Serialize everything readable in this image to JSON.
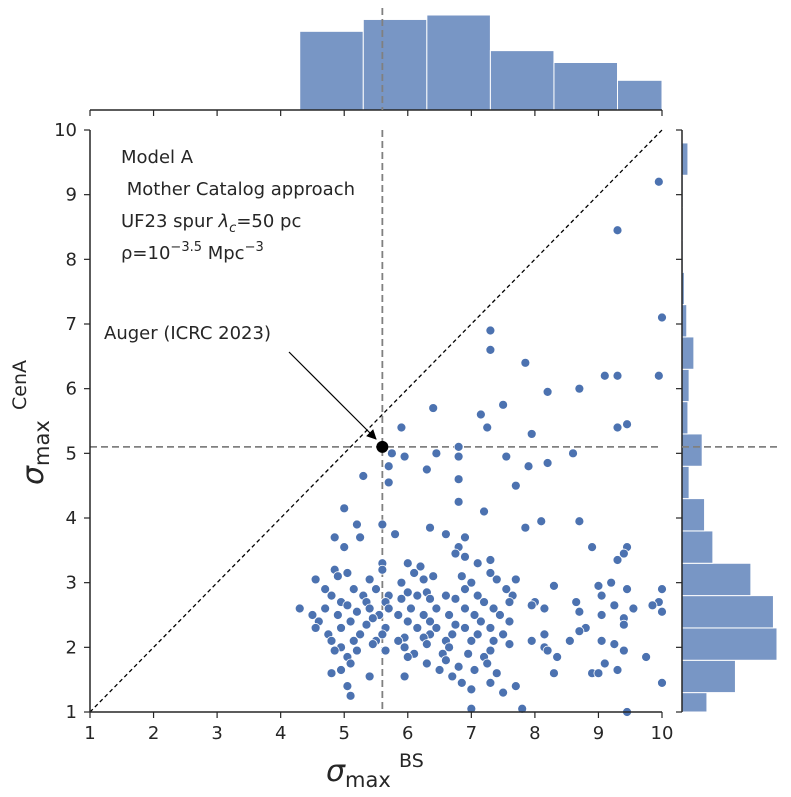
{
  "chart_data": {
    "type": "scatter",
    "variant": "jointplot with marginal histograms",
    "xlabel": {
      "main": "σ",
      "sub": "max",
      "sup": "BS"
    },
    "ylabel": {
      "main": "σ",
      "sub": "max",
      "sup": "CenA"
    },
    "xlim": [
      1,
      10
    ],
    "ylim": [
      1,
      10
    ],
    "xticks": [
      "1",
      "2",
      "3",
      "4",
      "5",
      "6",
      "7",
      "8",
      "9",
      "10"
    ],
    "yticks": [
      "1",
      "2",
      "3",
      "4",
      "5",
      "6",
      "7",
      "8",
      "9",
      "10"
    ],
    "grid": false,
    "diagonal_line": {
      "from": [
        1,
        1
      ],
      "to": [
        10,
        10
      ],
      "style": "dotted",
      "color": "#000000"
    },
    "reference_lines": {
      "x": 5.6,
      "y": 5.1,
      "style": "dashed",
      "color": "#808080"
    },
    "marker_color": "#4c72b0",
    "hist_color": "#7896c5",
    "annotation_lines": [
      {
        "id": "model",
        "text": "Model A"
      },
      {
        "id": "catalog",
        "text": " Mother Catalog approach"
      },
      {
        "id": "spur",
        "pre": "UF23 spur ",
        "sym": "λ",
        "sub": "c",
        "post": "=50 pc"
      },
      {
        "id": "rho",
        "pre": "ρ=10",
        "sup": "−3.5",
        "mid": " Mpc",
        "sup2": "−3"
      }
    ],
    "auger": {
      "label": "Auger (ICRC 2023)",
      "x": 5.6,
      "y": 5.1,
      "label_at": [
        2.25,
        6.8
      ]
    },
    "top_hist": {
      "bins": [
        [
          4.3,
          5.3
        ],
        [
          5.3,
          6.3
        ],
        [
          6.3,
          7.3
        ],
        [
          7.3,
          8.3
        ],
        [
          8.3,
          9.3
        ],
        [
          9.3,
          10.0
        ]
      ],
      "counts": [
        53,
        61,
        64,
        40,
        32,
        20
      ]
    },
    "right_hist": {
      "bins": [
        [
          1.0,
          1.3
        ],
        [
          1.3,
          1.8
        ],
        [
          1.8,
          2.3
        ],
        [
          2.3,
          2.8
        ],
        [
          2.8,
          3.3
        ],
        [
          3.3,
          3.8
        ],
        [
          3.8,
          4.3
        ],
        [
          4.3,
          4.8
        ],
        [
          4.8,
          5.3
        ],
        [
          5.3,
          5.8
        ],
        [
          5.8,
          6.3
        ],
        [
          6.3,
          6.8
        ],
        [
          6.8,
          7.3
        ],
        [
          7.3,
          7.8
        ],
        [
          7.8,
          8.3
        ],
        [
          8.3,
          8.8
        ],
        [
          8.8,
          9.3
        ],
        [
          9.3,
          9.8
        ]
      ],
      "counts": [
        21,
        45,
        80,
        77,
        58,
        26,
        19,
        6,
        17,
        5,
        6,
        10,
        4,
        2,
        1,
        1,
        1,
        5
      ]
    },
    "points": [
      [
        9.95,
        9.2
      ],
      [
        9.3,
        8.45
      ],
      [
        10.0,
        7.1
      ],
      [
        7.3,
        6.9
      ],
      [
        7.3,
        6.6
      ],
      [
        7.85,
        6.4
      ],
      [
        9.1,
        6.2
      ],
      [
        9.3,
        6.2
      ],
      [
        9.95,
        6.2
      ],
      [
        8.7,
        6.0
      ],
      [
        8.2,
        5.95
      ],
      [
        7.5,
        5.75
      ],
      [
        6.4,
        5.7
      ],
      [
        7.15,
        5.6
      ],
      [
        9.45,
        5.45
      ],
      [
        7.25,
        5.4
      ],
      [
        9.3,
        5.4
      ],
      [
        5.9,
        5.4
      ],
      [
        7.95,
        5.3
      ],
      [
        6.8,
        5.1
      ],
      [
        6.45,
        5.0
      ],
      [
        5.75,
        5.0
      ],
      [
        5.95,
        4.95
      ],
      [
        6.8,
        4.95
      ],
      [
        7.55,
        4.95
      ],
      [
        8.6,
        5.0
      ],
      [
        5.7,
        4.8
      ],
      [
        6.3,
        4.75
      ],
      [
        7.9,
        4.8
      ],
      [
        8.2,
        4.85
      ],
      [
        6.8,
        4.6
      ],
      [
        5.3,
        4.65
      ],
      [
        5.7,
        4.55
      ],
      [
        7.7,
        4.5
      ],
      [
        6.8,
        4.25
      ],
      [
        5.0,
        4.15
      ],
      [
        7.2,
        4.1
      ],
      [
        5.2,
        3.9
      ],
      [
        5.6,
        3.9
      ],
      [
        6.35,
        3.85
      ],
      [
        7.85,
        3.85
      ],
      [
        8.1,
        3.95
      ],
      [
        8.7,
        3.95
      ],
      [
        5.8,
        3.75
      ],
      [
        6.6,
        3.75
      ],
      [
        5.25,
        3.7
      ],
      [
        4.85,
        3.7
      ],
      [
        6.9,
        3.7
      ],
      [
        5.0,
        3.55
      ],
      [
        6.8,
        3.55
      ],
      [
        8.9,
        3.55
      ],
      [
        9.45,
        3.55
      ],
      [
        6.75,
        3.45
      ],
      [
        6.9,
        3.4
      ],
      [
        7.3,
        3.35
      ],
      [
        9.4,
        3.45
      ],
      [
        5.6,
        3.3
      ],
      [
        6.0,
        3.3
      ],
      [
        6.2,
        3.25
      ],
      [
        7.1,
        3.3
      ],
      [
        9.3,
        3.35
      ],
      [
        4.85,
        3.2
      ],
      [
        5.05,
        3.15
      ],
      [
        5.6,
        3.2
      ],
      [
        6.1,
        3.15
      ],
      [
        6.4,
        3.1
      ],
      [
        6.85,
        3.1
      ],
      [
        7.3,
        3.15
      ],
      [
        7.7,
        3.05
      ],
      [
        9.2,
        3.0
      ],
      [
        4.55,
        3.05
      ],
      [
        4.9,
        3.1
      ],
      [
        5.4,
        3.05
      ],
      [
        5.9,
        3.0
      ],
      [
        6.25,
        3.05
      ],
      [
        7.0,
        3.0
      ],
      [
        7.4,
        3.05
      ],
      [
        9.0,
        2.95
      ],
      [
        4.7,
        2.9
      ],
      [
        5.15,
        2.9
      ],
      [
        5.5,
        2.9
      ],
      [
        6.0,
        2.85
      ],
      [
        6.3,
        2.85
      ],
      [
        6.9,
        2.9
      ],
      [
        7.55,
        2.9
      ],
      [
        8.3,
        2.95
      ],
      [
        9.45,
        2.9
      ],
      [
        10.0,
        2.9
      ],
      [
        4.8,
        2.8
      ],
      [
        5.3,
        2.8
      ],
      [
        5.7,
        2.8
      ],
      [
        6.15,
        2.8
      ],
      [
        6.6,
        2.8
      ],
      [
        7.1,
        2.8
      ],
      [
        7.65,
        2.8
      ],
      [
        9.05,
        2.8
      ],
      [
        9.95,
        2.7
      ],
      [
        4.95,
        2.7
      ],
      [
        5.35,
        2.7
      ],
      [
        5.65,
        2.7
      ],
      [
        5.9,
        2.75
      ],
      [
        6.35,
        2.75
      ],
      [
        6.75,
        2.75
      ],
      [
        7.2,
        2.7
      ],
      [
        7.6,
        2.7
      ],
      [
        8.0,
        2.7
      ],
      [
        8.15,
        2.6
      ],
      [
        8.65,
        2.7
      ],
      [
        9.25,
        2.65
      ],
      [
        9.55,
        2.6
      ],
      [
        9.85,
        2.65
      ],
      [
        4.3,
        2.6
      ],
      [
        4.7,
        2.6
      ],
      [
        5.05,
        2.65
      ],
      [
        5.4,
        2.6
      ],
      [
        5.7,
        2.6
      ],
      [
        6.05,
        2.6
      ],
      [
        6.45,
        2.6
      ],
      [
        6.9,
        2.6
      ],
      [
        7.35,
        2.6
      ],
      [
        7.95,
        2.65
      ],
      [
        8.7,
        2.55
      ],
      [
        9.4,
        2.45
      ],
      [
        10.0,
        2.55
      ],
      [
        4.5,
        2.5
      ],
      [
        4.9,
        2.5
      ],
      [
        5.2,
        2.55
      ],
      [
        5.55,
        2.5
      ],
      [
        5.85,
        2.5
      ],
      [
        6.25,
        2.5
      ],
      [
        6.65,
        2.5
      ],
      [
        7.05,
        2.5
      ],
      [
        7.45,
        2.5
      ],
      [
        9.05,
        2.5
      ],
      [
        4.6,
        2.4
      ],
      [
        5.1,
        2.4
      ],
      [
        5.45,
        2.45
      ],
      [
        6.0,
        2.4
      ],
      [
        6.35,
        2.4
      ],
      [
        6.75,
        2.35
      ],
      [
        7.15,
        2.4
      ],
      [
        7.6,
        2.4
      ],
      [
        9.4,
        2.35
      ],
      [
        4.55,
        2.3
      ],
      [
        4.95,
        2.3
      ],
      [
        5.35,
        2.35
      ],
      [
        5.65,
        2.3
      ],
      [
        6.15,
        2.3
      ],
      [
        6.45,
        2.3
      ],
      [
        6.9,
        2.3
      ],
      [
        7.3,
        2.3
      ],
      [
        8.8,
        2.3
      ],
      [
        4.75,
        2.2
      ],
      [
        5.25,
        2.2
      ],
      [
        5.6,
        2.2
      ],
      [
        5.95,
        2.15
      ],
      [
        6.35,
        2.2
      ],
      [
        6.7,
        2.2
      ],
      [
        7.1,
        2.2
      ],
      [
        7.5,
        2.2
      ],
      [
        8.15,
        2.2
      ],
      [
        8.7,
        2.25
      ],
      [
        4.8,
        2.1
      ],
      [
        5.15,
        2.1
      ],
      [
        5.5,
        2.1
      ],
      [
        5.85,
        2.1
      ],
      [
        6.25,
        2.15
      ],
      [
        6.6,
        2.1
      ],
      [
        7.0,
        2.1
      ],
      [
        7.35,
        2.1
      ],
      [
        7.95,
        2.1
      ],
      [
        8.55,
        2.1
      ],
      [
        9.05,
        2.1
      ],
      [
        4.95,
        2.0
      ],
      [
        5.45,
        2.05
      ],
      [
        5.95,
        2.0
      ],
      [
        6.3,
        2.05
      ],
      [
        6.65,
        2.0
      ],
      [
        7.6,
        2.05
      ],
      [
        8.15,
        2.0
      ],
      [
        9.25,
        2.05
      ],
      [
        4.85,
        1.95
      ],
      [
        5.2,
        1.95
      ],
      [
        5.65,
        1.95
      ],
      [
        6.1,
        1.9
      ],
      [
        6.55,
        1.9
      ],
      [
        6.95,
        1.9
      ],
      [
        7.3,
        1.95
      ],
      [
        8.2,
        1.95
      ],
      [
        9.4,
        1.95
      ],
      [
        5.05,
        1.85
      ],
      [
        6.0,
        1.85
      ],
      [
        6.6,
        1.8
      ],
      [
        7.2,
        1.85
      ],
      [
        8.35,
        1.85
      ],
      [
        9.75,
        1.85
      ],
      [
        5.1,
        1.75
      ],
      [
        6.3,
        1.75
      ],
      [
        6.8,
        1.7
      ],
      [
        7.25,
        1.75
      ],
      [
        9.1,
        1.75
      ],
      [
        4.95,
        1.65
      ],
      [
        6.5,
        1.65
      ],
      [
        7.05,
        1.65
      ],
      [
        9.3,
        1.65
      ],
      [
        4.8,
        1.6
      ],
      [
        5.4,
        1.55
      ],
      [
        5.95,
        1.55
      ],
      [
        6.7,
        1.55
      ],
      [
        7.4,
        1.6
      ],
      [
        8.3,
        1.6
      ],
      [
        8.9,
        1.6
      ],
      [
        9.0,
        1.6
      ],
      [
        5.05,
        1.4
      ],
      [
        6.85,
        1.45
      ],
      [
        7.3,
        1.45
      ],
      [
        7.7,
        1.4
      ],
      [
        10.0,
        1.45
      ],
      [
        5.1,
        1.25
      ],
      [
        7.0,
        1.35
      ],
      [
        7.5,
        1.3
      ],
      [
        7.8,
        1.05
      ],
      [
        7.0,
        1.05
      ],
      [
        9.45,
        1.0
      ]
    ]
  }
}
